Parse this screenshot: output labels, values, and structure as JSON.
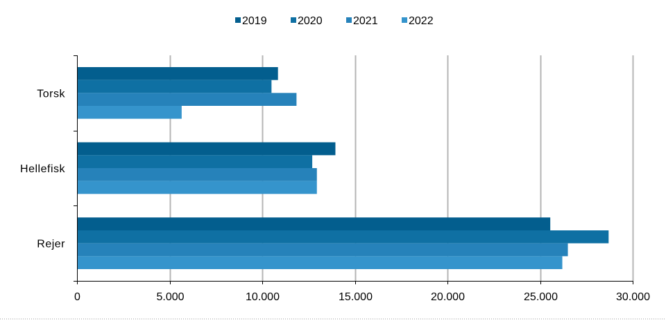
{
  "chart_data": {
    "type": "bar",
    "orientation": "horizontal",
    "categories": [
      "Torsk",
      "Hellefisk",
      "Rejer"
    ],
    "series": [
      {
        "name": "2019",
        "color": "#035e8e",
        "values": [
          10850,
          13950,
          25550
        ]
      },
      {
        "name": "2020",
        "color": "#0f70a3",
        "values": [
          10500,
          12700,
          28700
        ]
      },
      {
        "name": "2021",
        "color": "#2682ba",
        "values": [
          11850,
          12950,
          26500
        ]
      },
      {
        "name": "2022",
        "color": "#3594cc",
        "values": [
          5650,
          12950,
          26200
        ]
      }
    ],
    "xlim": [
      0,
      30000
    ],
    "x_ticks": [
      0,
      5000,
      10000,
      15000,
      20000,
      25000,
      30000
    ],
    "x_tick_labels": [
      "0",
      "5.000",
      "10.000",
      "15.000",
      "20.000",
      "25.000",
      "30.000"
    ],
    "grid": "vertical",
    "legend_position": "top",
    "title": "",
    "xlabel": "",
    "ylabel": ""
  }
}
